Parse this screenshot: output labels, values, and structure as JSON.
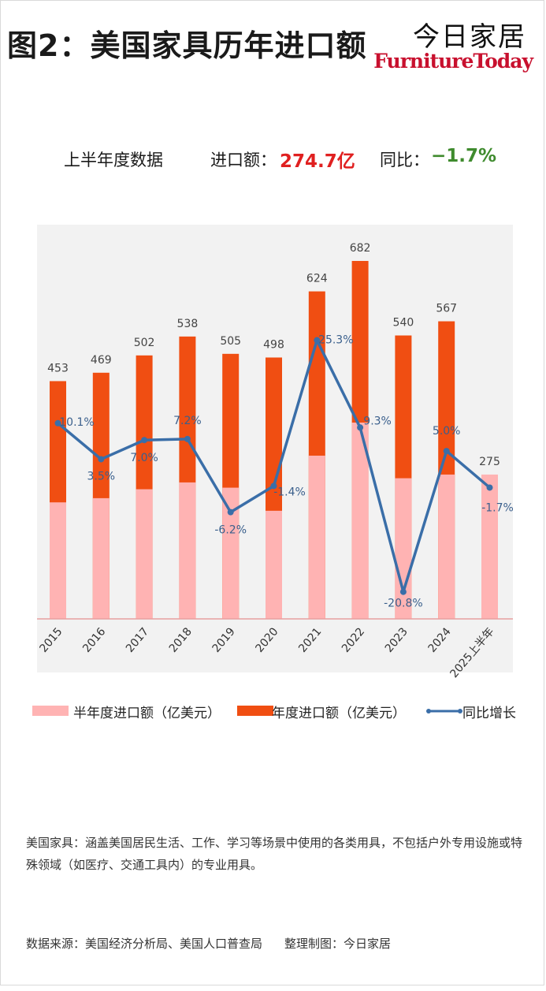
{
  "header": {
    "title": "图2：美国家具历年进口额",
    "brand_cn": "今日家居",
    "brand_en": "FurnitureToday"
  },
  "summary": {
    "label": "上半年度数据",
    "import_label": "进口额：",
    "import_value": "274.7亿",
    "yoy_label": "同比：",
    "yoy_value": "−1.7%"
  },
  "colors": {
    "half_year": "#ffb3b3",
    "annual": "#f04e12",
    "yoy_line": "#3a6ea8",
    "plot_bg": "#f2f2f2",
    "axis": "#e8a0a0"
  },
  "chart_data": {
    "type": "bar",
    "categories": [
      "2015",
      "2016",
      "2017",
      "2018",
      "2019",
      "2020",
      "2021",
      "2022",
      "2023",
      "2024",
      "2025上半年"
    ],
    "series": [
      {
        "name": "半年度进口额（亿美元）",
        "type": "bar",
        "values": [
          222,
          230,
          247,
          260,
          250,
          206,
          311,
          374,
          268,
          275,
          275
        ]
      },
      {
        "name": "年度进口额（亿美元）",
        "type": "bar",
        "values": [
          453,
          469,
          502,
          538,
          505,
          498,
          624,
          682,
          540,
          567,
          null
        ],
        "labels": [
          "453",
          "469",
          "502",
          "538",
          "505",
          "498",
          "624",
          "682",
          "540",
          "567",
          "275"
        ]
      },
      {
        "name": "同比增长",
        "type": "line",
        "values": [
          10.1,
          3.5,
          7.0,
          7.2,
          -6.2,
          -1.4,
          25.3,
          9.3,
          -20.8,
          5.0,
          -1.7
        ],
        "labels": [
          "10.1%",
          "3.5%",
          "7.0%",
          "7.2%",
          "-6.2%",
          "-1.4%",
          "25.3%",
          "9.3%",
          "-20.8%",
          "5.0%",
          "-1.7%"
        ]
      }
    ],
    "ylim_amount": [
      0,
      700
    ],
    "ylim_yoy": [
      -22,
      30
    ],
    "grid": false,
    "legend_position": "bottom"
  },
  "legend": {
    "half_year": "半年度进口额（亿美元）",
    "annual": "年度进口额（亿美元）",
    "yoy": "同比增长"
  },
  "note": "美国家具：涵盖美国居民生活、工作、学习等场景中使用的各类用具，不包括户外专用设施或特殊领域（如医疗、交通工具内）的专业用具。",
  "source": {
    "text": "数据来源：美国经济分析局、美国人口普查局",
    "maker": "整理制图：今日家居"
  }
}
